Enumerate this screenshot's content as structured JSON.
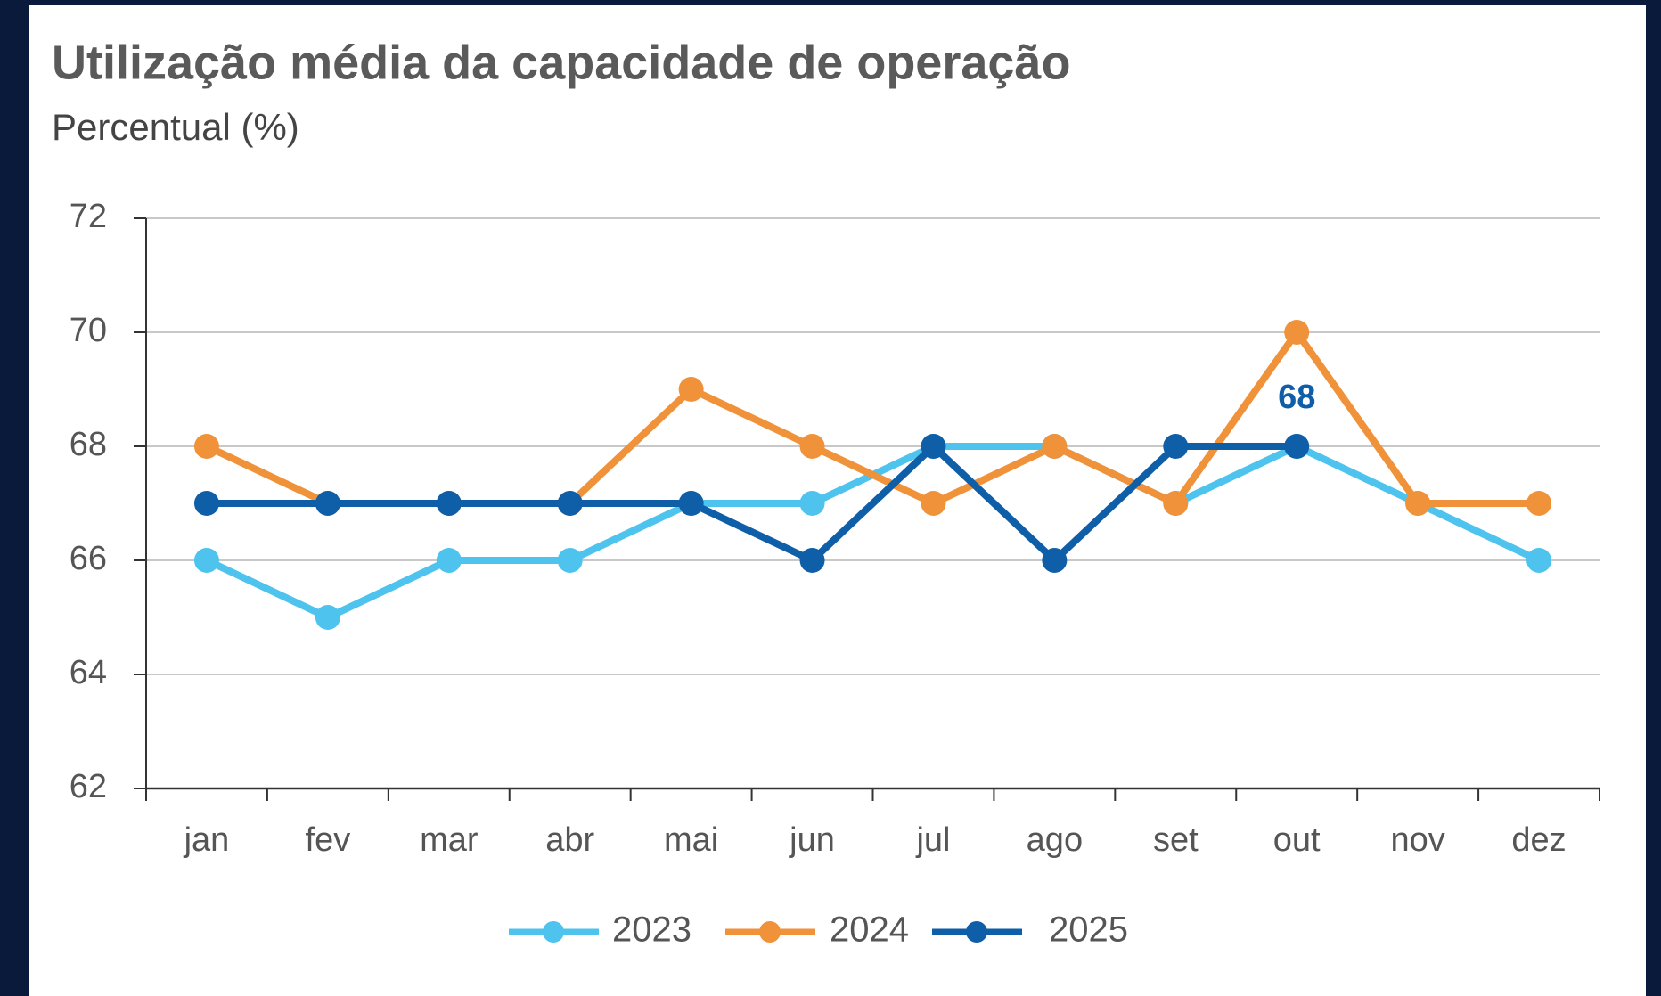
{
  "chart_data": {
    "type": "line",
    "title": "Utilização média da capacidade de operação",
    "subtitle": "Percentual (%)",
    "categories": [
      "jan",
      "fev",
      "mar",
      "abr",
      "mai",
      "jun",
      "jul",
      "ago",
      "set",
      "out",
      "nov",
      "dez"
    ],
    "series": [
      {
        "name": "2023",
        "color": "#4dc3ee",
        "values": [
          66,
          65,
          66,
          66,
          67,
          67,
          68,
          68,
          67,
          68,
          67,
          66
        ]
      },
      {
        "name": "2024",
        "color": "#f0923a",
        "values": [
          68,
          67,
          67,
          67,
          69,
          68,
          67,
          68,
          67,
          70,
          67,
          67
        ]
      },
      {
        "name": "2025",
        "color": "#0f5ea8",
        "values": [
          67,
          67,
          67,
          67,
          67,
          66,
          68,
          66,
          68,
          68,
          null,
          null
        ]
      }
    ],
    "annotations": [
      {
        "category": "out",
        "value": 68,
        "text": "68",
        "color": "#0f5ea8"
      }
    ],
    "ylim": [
      62,
      72
    ],
    "yticks": [
      62,
      64,
      66,
      68,
      70,
      72
    ],
    "grid": true,
    "legend": "bottom"
  }
}
